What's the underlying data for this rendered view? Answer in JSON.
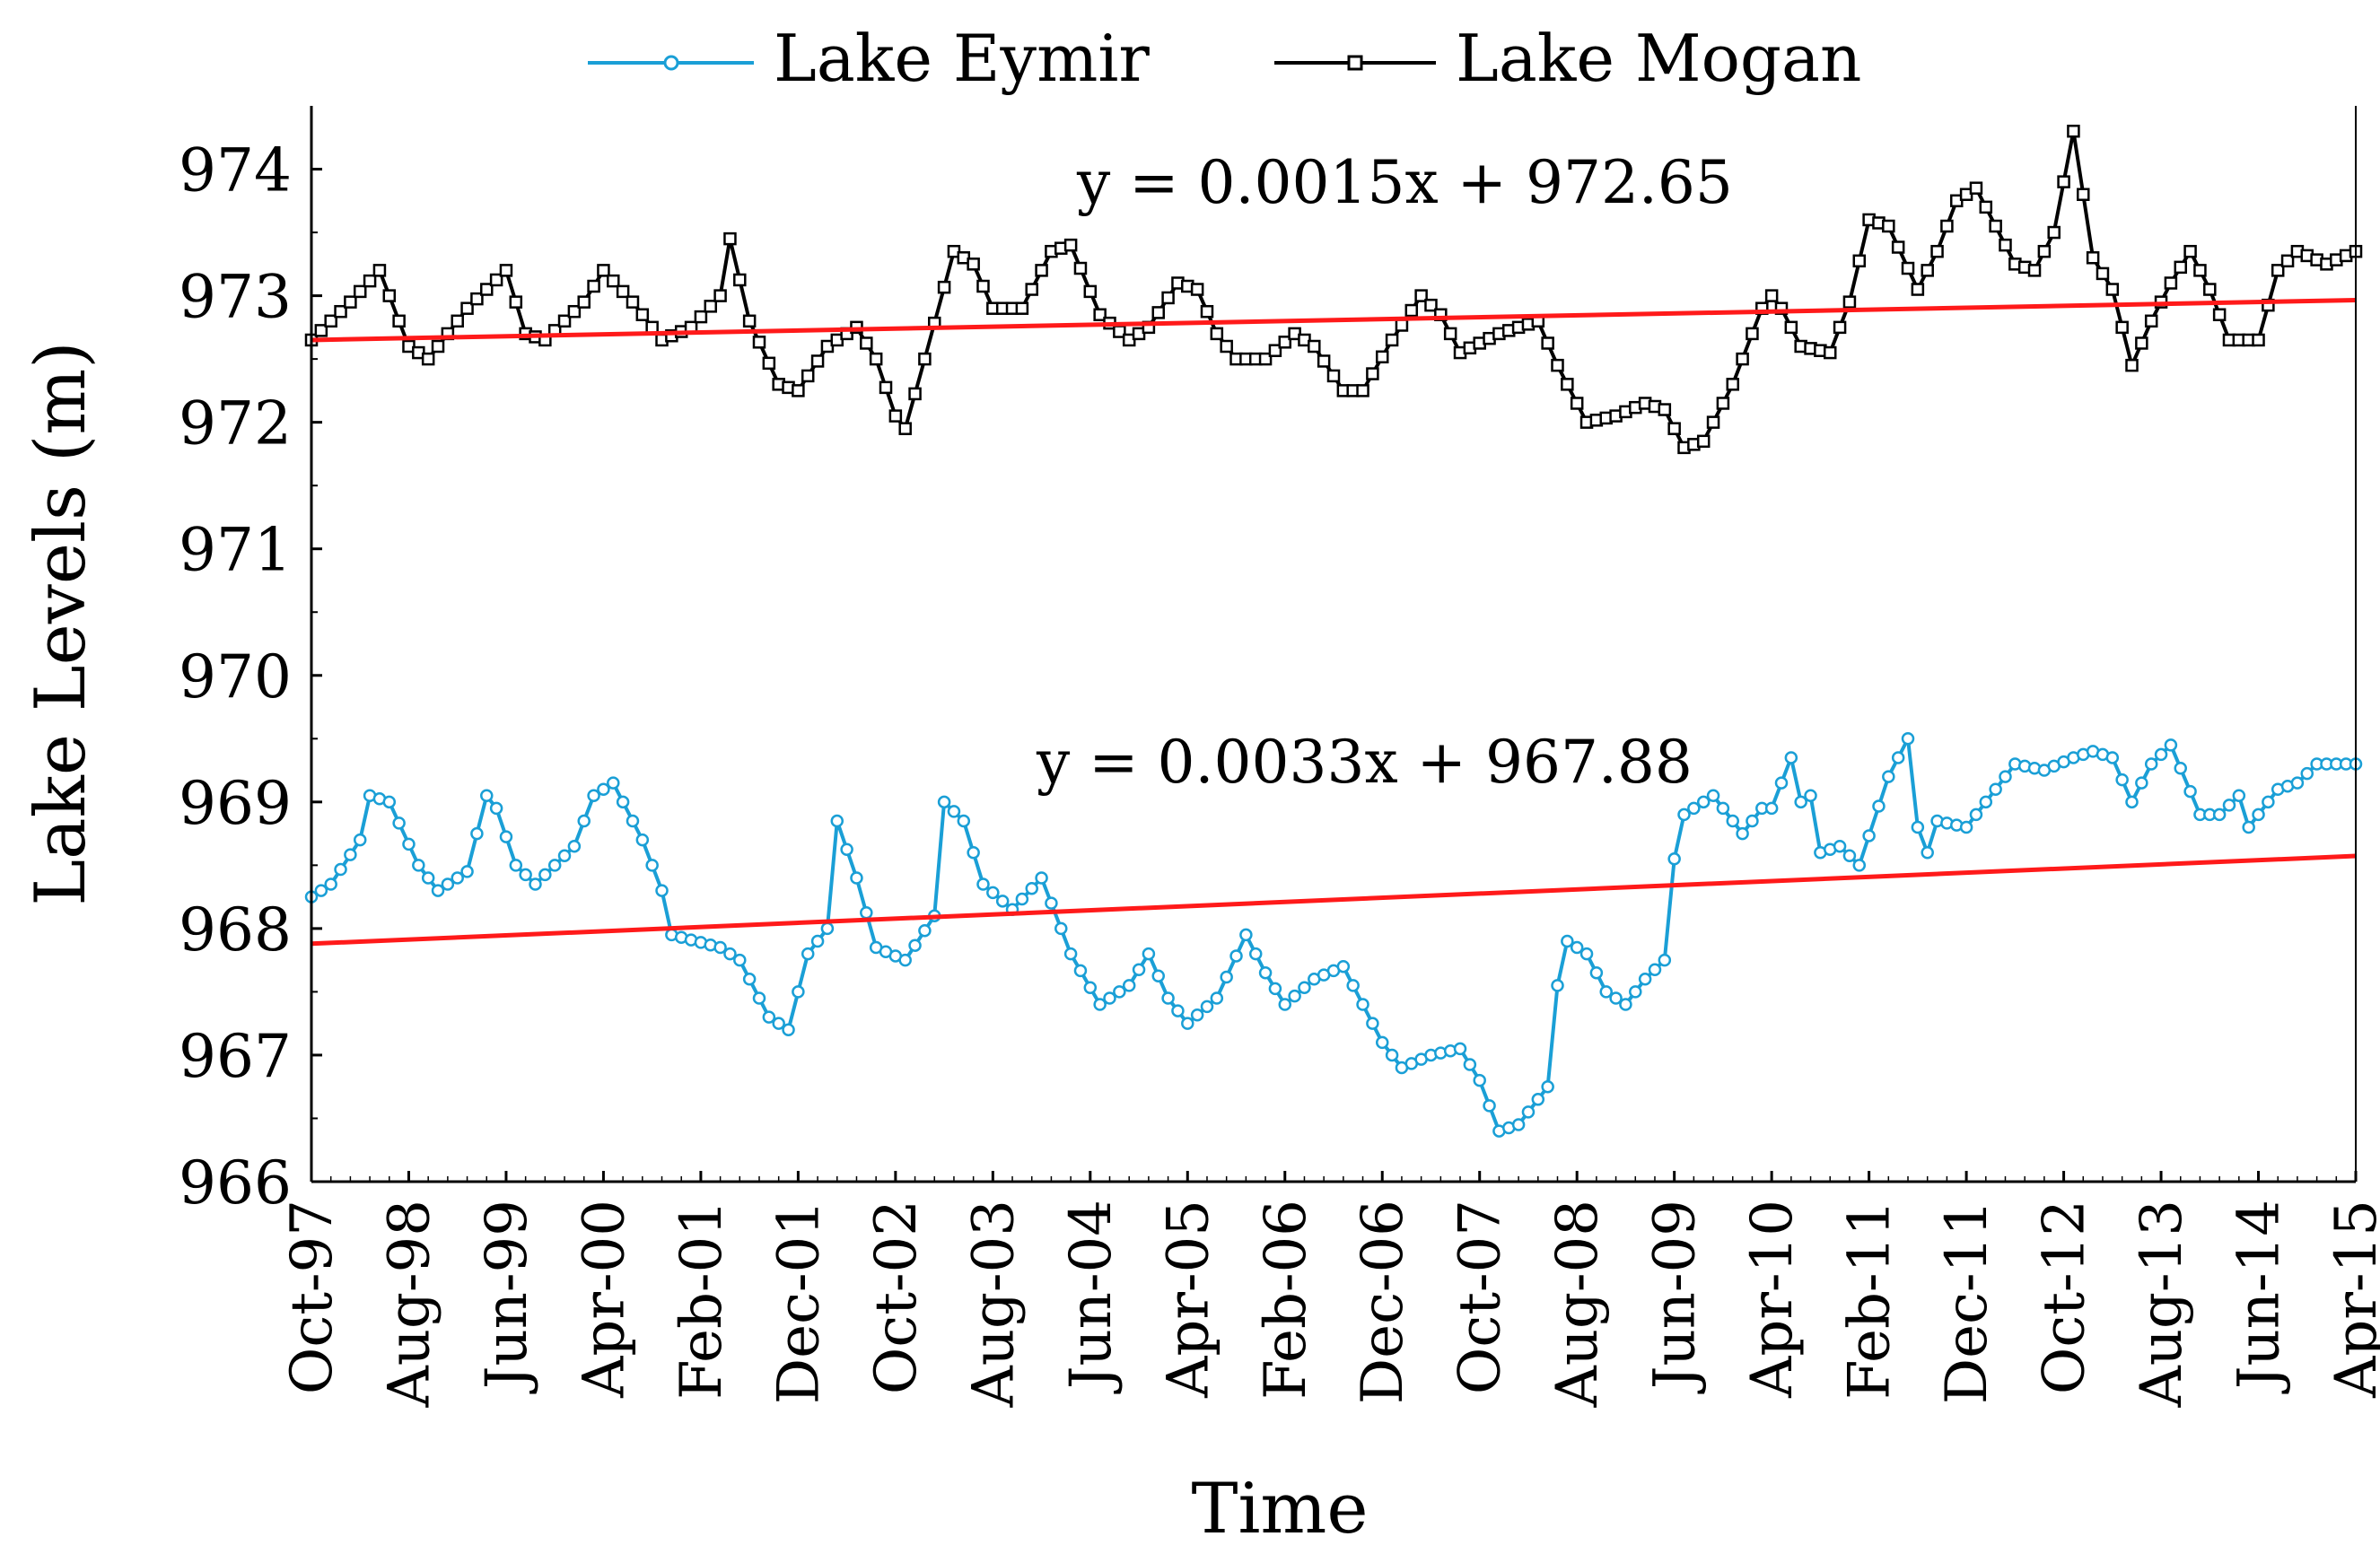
{
  "chart_data": {
    "type": "line",
    "title": "",
    "xlabel": "Time",
    "ylabel": "Lake Levels (m)",
    "ylim": [
      966,
      974.5
    ],
    "yticks": [
      "966",
      "967",
      "968",
      "969",
      "970",
      "971",
      "972",
      "973",
      "974"
    ],
    "x_start": "Oct-97",
    "x_step_months": 1,
    "x_ticks": [
      {
        "label": "Oct-97",
        "index": 0
      },
      {
        "label": "Aug-98",
        "index": 10
      },
      {
        "label": "Jun-99",
        "index": 20
      },
      {
        "label": "Apr-00",
        "index": 30
      },
      {
        "label": "Feb-01",
        "index": 40
      },
      {
        "label": "Dec-01",
        "index": 50
      },
      {
        "label": "Oct-02",
        "index": 60
      },
      {
        "label": "Aug-03",
        "index": 70
      },
      {
        "label": "Jun-04",
        "index": 80
      },
      {
        "label": "Apr-05",
        "index": 90
      },
      {
        "label": "Feb-06",
        "index": 100
      },
      {
        "label": "Dec-06",
        "index": 110
      },
      {
        "label": "Oct-07",
        "index": 120
      },
      {
        "label": "Aug-08",
        "index": 130
      },
      {
        "label": "Jun-09",
        "index": 140
      },
      {
        "label": "Apr-10",
        "index": 150
      },
      {
        "label": "Feb-11",
        "index": 160
      },
      {
        "label": "Dec-11",
        "index": 170
      },
      {
        "label": "Oct-12",
        "index": 180
      },
      {
        "label": "Aug-13",
        "index": 190
      },
      {
        "label": "Jun-14",
        "index": 200
      },
      {
        "label": "Apr-15",
        "index": 210
      }
    ],
    "legend": [
      {
        "name": "Lake Eymir",
        "marker": "circle"
      },
      {
        "name": "Lake Mogan",
        "marker": "square"
      }
    ],
    "legend_position": "top-center",
    "series": [
      {
        "name": "Lake Mogan",
        "color": "#000000",
        "marker": "square",
        "anchors": [
          [
            0,
            972.65
          ],
          [
            4,
            972.95
          ],
          [
            7,
            973.2
          ],
          [
            10,
            972.6
          ],
          [
            12,
            972.5
          ],
          [
            16,
            972.9
          ],
          [
            20,
            973.2
          ],
          [
            22,
            972.7
          ],
          [
            24,
            972.65
          ],
          [
            28,
            972.95
          ],
          [
            30,
            973.2
          ],
          [
            33,
            972.95
          ],
          [
            36,
            972.65
          ],
          [
            39,
            972.75
          ],
          [
            42,
            973.0
          ],
          [
            43,
            973.45
          ],
          [
            45,
            972.8
          ],
          [
            48,
            972.3
          ],
          [
            50,
            972.25
          ],
          [
            53,
            972.6
          ],
          [
            56,
            972.75
          ],
          [
            58,
            972.5
          ],
          [
            60,
            972.05
          ],
          [
            61,
            971.95
          ],
          [
            63,
            972.5
          ],
          [
            66,
            973.35
          ],
          [
            68,
            973.25
          ],
          [
            70,
            972.9
          ],
          [
            73,
            972.9
          ],
          [
            76,
            973.35
          ],
          [
            78,
            973.4
          ],
          [
            81,
            972.85
          ],
          [
            84,
            972.65
          ],
          [
            86,
            972.75
          ],
          [
            89,
            973.1
          ],
          [
            91,
            973.05
          ],
          [
            93,
            972.7
          ],
          [
            95,
            972.5
          ],
          [
            98,
            972.5
          ],
          [
            101,
            972.7
          ],
          [
            103,
            972.6
          ],
          [
            106,
            972.25
          ],
          [
            108,
            972.25
          ],
          [
            111,
            972.65
          ],
          [
            114,
            973.0
          ],
          [
            116,
            972.85
          ],
          [
            118,
            972.55
          ],
          [
            122,
            972.7
          ],
          [
            126,
            972.8
          ],
          [
            128,
            972.45
          ],
          [
            131,
            972.0
          ],
          [
            134,
            972.05
          ],
          [
            137,
            972.15
          ],
          [
            139,
            972.1
          ],
          [
            141,
            971.8
          ],
          [
            143,
            971.85
          ],
          [
            146,
            972.3
          ],
          [
            149,
            972.9
          ],
          [
            150,
            973.0
          ],
          [
            151,
            972.9
          ],
          [
            153,
            972.6
          ],
          [
            156,
            972.55
          ],
          [
            158,
            972.95
          ],
          [
            160,
            973.6
          ],
          [
            162,
            973.55
          ],
          [
            165,
            973.05
          ],
          [
            167,
            973.35
          ],
          [
            169,
            973.75
          ],
          [
            171,
            973.85
          ],
          [
            173,
            973.55
          ],
          [
            175,
            973.25
          ],
          [
            177,
            973.2
          ],
          [
            179,
            973.5
          ],
          [
            181,
            974.3
          ],
          [
            183,
            973.3
          ],
          [
            185,
            973.05
          ],
          [
            187,
            972.45
          ],
          [
            189,
            972.8
          ],
          [
            191,
            973.1
          ],
          [
            193,
            973.35
          ],
          [
            195,
            973.05
          ],
          [
            197,
            972.65
          ],
          [
            200,
            972.65
          ],
          [
            202,
            973.2
          ],
          [
            204,
            973.35
          ],
          [
            207,
            973.25
          ],
          [
            210,
            973.35
          ]
        ]
      },
      {
        "name": "Lake Eymir",
        "color": "#1a9fd6",
        "marker": "circle",
        "anchors": [
          [
            0,
            968.25
          ],
          [
            2,
            968.35
          ],
          [
            5,
            968.7
          ],
          [
            6,
            969.05
          ],
          [
            8,
            969.0
          ],
          [
            11,
            968.5
          ],
          [
            13,
            968.3
          ],
          [
            16,
            968.45
          ],
          [
            18,
            969.05
          ],
          [
            19,
            968.95
          ],
          [
            21,
            968.5
          ],
          [
            23,
            968.35
          ],
          [
            27,
            968.65
          ],
          [
            29,
            969.05
          ],
          [
            31,
            969.15
          ],
          [
            34,
            968.7
          ],
          [
            36,
            968.3
          ],
          [
            37,
            967.95
          ],
          [
            42,
            967.85
          ],
          [
            44,
            967.75
          ],
          [
            47,
            967.3
          ],
          [
            49,
            967.2
          ],
          [
            51,
            967.8
          ],
          [
            53,
            968.0
          ],
          [
            54,
            968.85
          ],
          [
            56,
            968.4
          ],
          [
            58,
            967.85
          ],
          [
            61,
            967.75
          ],
          [
            64,
            968.1
          ],
          [
            65,
            969.0
          ],
          [
            67,
            968.85
          ],
          [
            69,
            968.35
          ],
          [
            72,
            968.15
          ],
          [
            75,
            968.4
          ],
          [
            78,
            967.8
          ],
          [
            81,
            967.4
          ],
          [
            84,
            967.55
          ],
          [
            86,
            967.8
          ],
          [
            88,
            967.45
          ],
          [
            90,
            967.25
          ],
          [
            93,
            967.45
          ],
          [
            96,
            967.95
          ],
          [
            98,
            967.65
          ],
          [
            100,
            967.4
          ],
          [
            103,
            967.6
          ],
          [
            106,
            967.7
          ],
          [
            108,
            967.4
          ],
          [
            110,
            967.1
          ],
          [
            112,
            966.9
          ],
          [
            115,
            967.0
          ],
          [
            118,
            967.05
          ],
          [
            120,
            966.8
          ],
          [
            122,
            966.4
          ],
          [
            124,
            966.45
          ],
          [
            127,
            966.75
          ],
          [
            128,
            967.55
          ],
          [
            129,
            967.9
          ],
          [
            131,
            967.8
          ],
          [
            133,
            967.5
          ],
          [
            135,
            967.4
          ],
          [
            137,
            967.6
          ],
          [
            139,
            967.75
          ],
          [
            140,
            968.55
          ],
          [
            141,
            968.9
          ],
          [
            144,
            969.05
          ],
          [
            147,
            968.75
          ],
          [
            149,
            968.95
          ],
          [
            150,
            968.95
          ],
          [
            152,
            969.35
          ],
          [
            153,
            969.0
          ],
          [
            154,
            969.05
          ],
          [
            155,
            968.6
          ],
          [
            157,
            968.65
          ],
          [
            159,
            968.5
          ],
          [
            162,
            969.2
          ],
          [
            164,
            969.5
          ],
          [
            165,
            968.8
          ],
          [
            166,
            968.6
          ],
          [
            167,
            968.85
          ],
          [
            170,
            968.8
          ],
          [
            173,
            969.1
          ],
          [
            175,
            969.3
          ],
          [
            178,
            969.25
          ],
          [
            181,
            969.35
          ],
          [
            183,
            969.4
          ],
          [
            185,
            969.35
          ],
          [
            187,
            969.0
          ],
          [
            189,
            969.3
          ],
          [
            191,
            969.45
          ],
          [
            194,
            968.9
          ],
          [
            196,
            968.9
          ],
          [
            198,
            969.05
          ],
          [
            199,
            968.8
          ],
          [
            202,
            969.1
          ],
          [
            204,
            969.15
          ],
          [
            206,
            969.3
          ],
          [
            210,
            969.3
          ]
        ]
      }
    ],
    "trendlines": [
      {
        "series": "Lake Mogan",
        "equation": "y = 0.0015x + 972.65",
        "slope": 0.0015,
        "intercept": 972.65,
        "color": "#ff1a1a"
      },
      {
        "series": "Lake Eymir",
        "equation": "y = 0.0033x + 967.88",
        "slope": 0.0033,
        "intercept": 967.88,
        "color": "#ff1a1a"
      }
    ],
    "n_points": 211
  }
}
